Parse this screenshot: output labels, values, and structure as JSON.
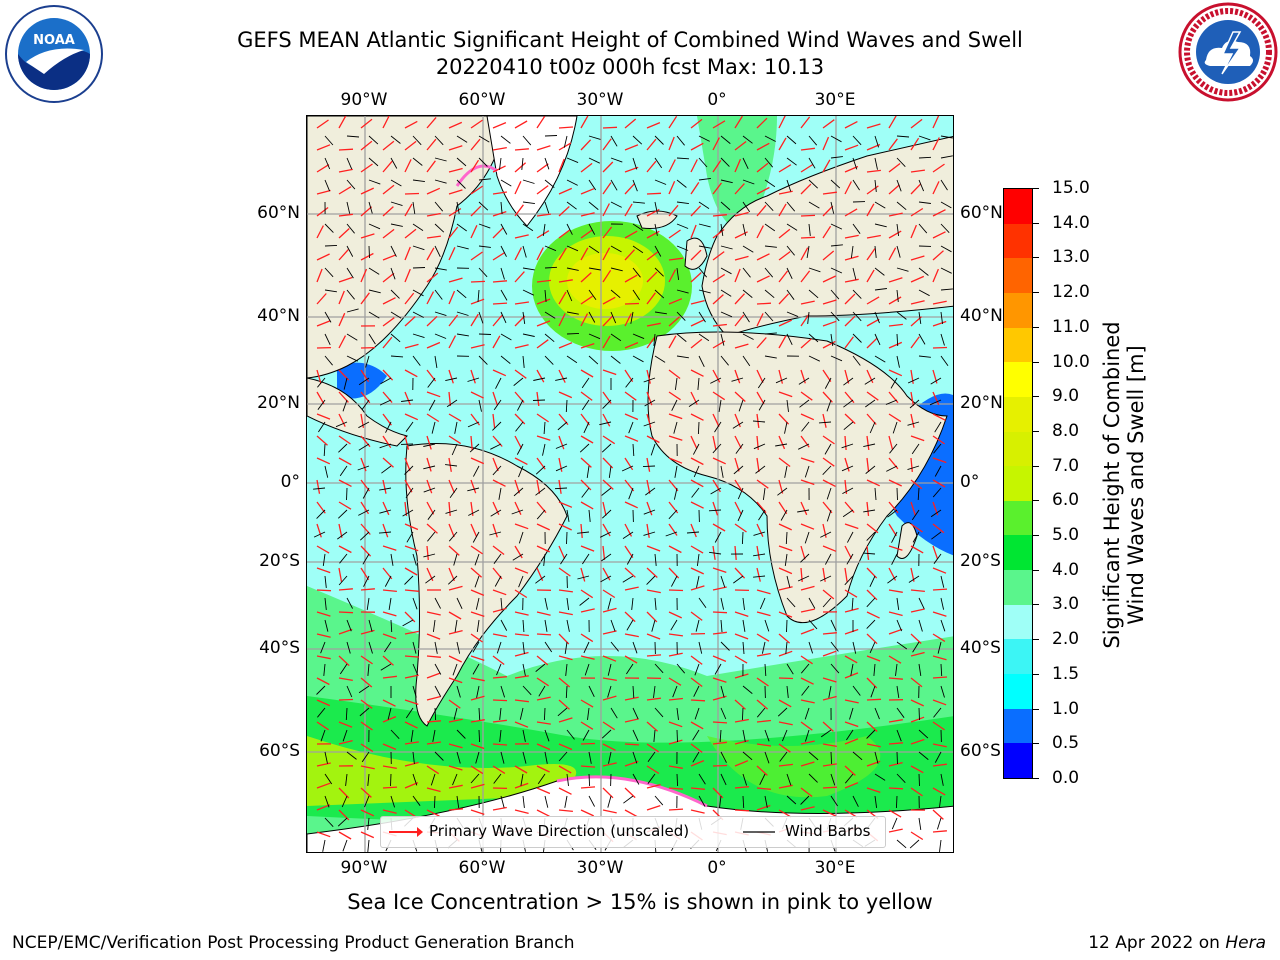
{
  "header": {
    "title_line1": "GEFS MEAN Atlantic Significant Height of Combined Wind Waves and Swell",
    "title_line2": "20220410 t00z 000h fcst   Max: 10.13"
  },
  "logos": {
    "left": "NOAA",
    "right": "NATIONAL WEATHER SERVICE"
  },
  "map": {
    "lon_labels": [
      "90°W",
      "60°W",
      "30°W",
      "0°",
      "30°E"
    ],
    "lat_labels": [
      "60°N",
      "40°N",
      "20°N",
      "0°",
      "20°S",
      "40°S",
      "60°S"
    ]
  },
  "colorbar": {
    "ticks": [
      "0.0",
      "0.5",
      "1.0",
      "1.5",
      "2.0",
      "3.0",
      "4.0",
      "5.0",
      "6.0",
      "7.0",
      "8.0",
      "9.0",
      "10.0",
      "11.0",
      "12.0",
      "13.0",
      "14.0",
      "15.0"
    ],
    "colors": [
      "#0000ff",
      "#0a6eff",
      "#00ffff",
      "#3cf5f5",
      "#9ffff7",
      "#5af58c",
      "#00e632",
      "#5af02d",
      "#c6f500",
      "#d7f000",
      "#e6f000",
      "#ffff00",
      "#ffc800",
      "#ff9600",
      "#ff6400",
      "#ff3200",
      "#ff0000"
    ],
    "title_line1": "Significant Height of Combined",
    "title_line2": "Wind Waves and Swell [m]"
  },
  "legend": {
    "wave_direction_label": "Primary Wave Direction (unscaled)",
    "wind_barbs_label": "Wind Barbs"
  },
  "notes": {
    "sea_ice": "Sea Ice Concentration > 15% is shown in pink to yellow"
  },
  "footer": {
    "left": "NCEP/EMC/Verification Post Processing Product Generation Branch",
    "date": "12 Apr 2022 on ",
    "host": "Hera"
  }
}
